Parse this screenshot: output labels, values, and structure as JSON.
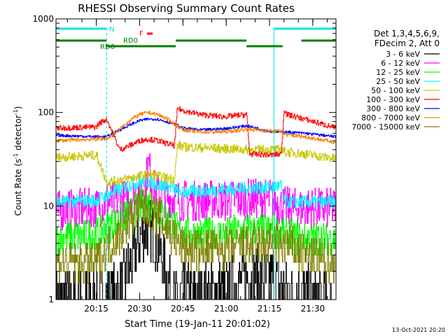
{
  "chart_data": {
    "type": "line",
    "title": "RHESSI Observing Summary Count Rates",
    "xlabel": "Start Time (19-Jan-11 20:01:02)",
    "ylabel_main": "Count Rate (s",
    "ylabel_exp": "-1",
    "ylabel_tail": " detector",
    "ylabel_exp2": "-1",
    "ylabel_close": ")",
    "yscale": "log",
    "ylim": [
      1,
      1000
    ],
    "xlim_minutes": [
      0,
      97
    ],
    "x_tick_labels": [
      "20:15",
      "20:30",
      "20:45",
      "21:00",
      "21:15",
      "21:30"
    ],
    "x_tick_minutes": [
      13.97,
      28.97,
      43.97,
      58.97,
      73.97,
      88.97
    ],
    "y_tick_labels": [
      "1",
      "10",
      "100",
      "1000"
    ],
    "y_tick_values": [
      1,
      10,
      100,
      1000
    ],
    "legend_header": [
      "Det 1,3,4,5,6,9,",
      "FDecim 2, Att 0"
    ],
    "legend_position": "right",
    "footer_date": "13-Oct-2021 20:20",
    "flags": {
      "night_label": "N",
      "night_color": "#00e5e5",
      "night_segments": [
        [
          0,
          17.5
        ],
        [
          75.5,
          97
        ]
      ],
      "flare_label": "F",
      "flare_color": "#ff0000",
      "flare_segments": [
        [
          31.5,
          33.5
        ]
      ],
      "rd_labels": [
        "RD6",
        "RD0"
      ],
      "rd_color": "#007f00",
      "rd_segments_top": [
        [
          0,
          17.5
        ],
        [
          41.5,
          66
        ],
        [
          85,
          97
        ]
      ],
      "rd_segments_bottom": [
        [
          17.5,
          41.5
        ],
        [
          66,
          78.5
        ]
      ],
      "saa_color": "#00e5e5",
      "saa_lines": [
        17.5,
        75.5,
        97
      ]
    },
    "series": [
      {
        "name": "3 - 6 keV",
        "color": "#000000",
        "x": [
          0,
          14,
          17.5,
          22,
          26,
          29,
          32,
          35,
          38,
          39,
          40,
          41,
          42,
          44,
          50,
          58,
          64,
          66,
          75,
          80,
          86,
          88,
          97
        ],
        "y": [
          1,
          1,
          1.02,
          1.2,
          2.5,
          4.5,
          6,
          4,
          2,
          1.5,
          1.2,
          1,
          1,
          1.1,
          1.1,
          1.2,
          1.5,
          1.7,
          1.7,
          1.2,
          1.1,
          1,
          1
        ]
      },
      {
        "name": "6 - 12 keV",
        "color": "#ff00ff",
        "x": [
          0,
          14,
          17.5,
          22,
          26,
          29,
          31,
          32,
          33,
          34,
          36,
          40,
          44,
          50,
          58,
          66,
          75,
          76,
          78,
          81,
          97
        ],
        "y": [
          9,
          9.5,
          11,
          11.5,
          12,
          14,
          18,
          28,
          19,
          15,
          13,
          12,
          11.5,
          11.5,
          11.5,
          12,
          12,
          11,
          10,
          9.5,
          9.5
        ]
      },
      {
        "name": "12 - 25 keV",
        "color": "#00ff00",
        "x": [
          0,
          14,
          17.5,
          22,
          26,
          29,
          32,
          35,
          38,
          41,
          44,
          50,
          58,
          66,
          75,
          80,
          86,
          97
        ],
        "y": [
          4.5,
          5,
          6,
          7,
          8.5,
          10,
          10.5,
          9,
          7.5,
          6,
          5,
          5,
          5,
          5.5,
          5.5,
          5,
          4.5,
          4.5
        ]
      },
      {
        "name": "25 - 50 keV",
        "color": "#00ffff",
        "x": [
          0,
          14,
          17.5,
          22,
          26,
          29,
          32,
          35,
          38,
          41,
          42,
          44,
          50,
          58,
          66,
          75,
          78,
          79,
          86,
          97
        ],
        "y": [
          11,
          11.5,
          13,
          15,
          17,
          18,
          18.5,
          17,
          16,
          15.5,
          14,
          14,
          14.5,
          15,
          15.5,
          16,
          16.5,
          11,
          11,
          11
        ]
      },
      {
        "name": "50 - 100 keV",
        "color": "#c8c800",
        "x": [
          0,
          14,
          17.5,
          22,
          26,
          29,
          32,
          35,
          38,
          41,
          42,
          44,
          50,
          58,
          66,
          75,
          78,
          79,
          86,
          97
        ],
        "y": [
          33,
          35,
          18,
          19,
          20,
          21,
          22,
          21,
          20,
          19.5,
          45,
          43,
          42,
          41,
          40,
          40,
          40,
          38,
          36,
          32
        ]
      },
      {
        "name": "100 - 300 keV",
        "color": "#ff0000",
        "x": [
          0,
          14,
          14.5,
          17.5,
          22,
          26,
          29,
          32,
          35,
          38,
          41,
          42,
          44,
          50,
          58,
          66,
          67,
          75,
          78,
          79,
          80,
          86,
          97
        ],
        "y": [
          68,
          70,
          75,
          85,
          40,
          45,
          50,
          52,
          50,
          47,
          44,
          110,
          105,
          95,
          90,
          95,
          36,
          35,
          36,
          110,
          95,
          85,
          68
        ]
      },
      {
        "name": "300 - 800 keV",
        "color": "#0000ff",
        "x": [
          0,
          14,
          17.5,
          22,
          26,
          29,
          32,
          35,
          38,
          41,
          44,
          50,
          58,
          66,
          75,
          78,
          79,
          86,
          97
        ],
        "y": [
          57,
          55,
          55,
          65,
          75,
          82,
          85,
          85,
          80,
          75,
          68,
          65,
          67,
          72,
          62,
          62,
          62,
          60,
          55
        ]
      },
      {
        "name": "800 - 7000 keV",
        "color": "#ff8000",
        "x": [
          0,
          14,
          17.5,
          22,
          26,
          29,
          32,
          35,
          38,
          41,
          44,
          50,
          58,
          66,
          75,
          78,
          79,
          86,
          97
        ],
        "y": [
          50,
          52,
          52,
          66,
          85,
          95,
          100,
          95,
          87,
          75,
          65,
          62,
          62,
          66,
          63,
          63,
          58,
          55,
          48
        ]
      },
      {
        "name": "7000 - 15000 keV",
        "color": "#808000",
        "x": [
          0,
          14,
          17.5,
          22,
          26,
          29,
          32,
          35,
          38,
          41,
          44,
          50,
          58,
          66,
          75,
          80,
          86,
          97
        ],
        "y": [
          2.5,
          2.5,
          3.5,
          5,
          7.5,
          9,
          9.5,
          8,
          6,
          4.5,
          3.5,
          3.5,
          3.5,
          3.8,
          4,
          3.8,
          3,
          2.5
        ]
      }
    ]
  }
}
